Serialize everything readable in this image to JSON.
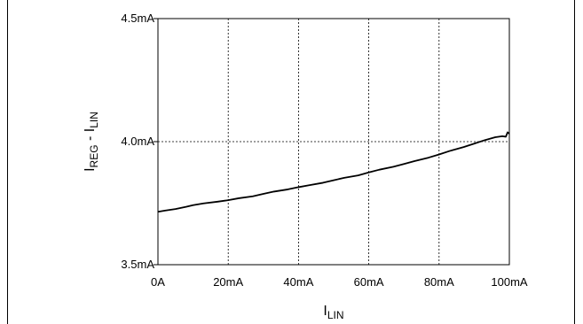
{
  "chart_data": {
    "type": "line",
    "xlabel": {
      "main": "I",
      "sub": "LIN"
    },
    "ylabel": {
      "part1_main": "I",
      "part1_sub": "REG",
      "sep": " - ",
      "part2_main": "I",
      "part2_sub": "LIN"
    },
    "xlim": [
      0,
      100
    ],
    "ylim": [
      3.5,
      4.5
    ],
    "x_ticks": [
      0,
      20,
      40,
      60,
      80,
      100
    ],
    "x_tick_labels": [
      "0A",
      "20mA",
      "40mA",
      "60mA",
      "80mA",
      "100mA"
    ],
    "y_ticks": [
      3.5,
      4.0,
      4.5
    ],
    "y_tick_labels": [
      "3.5mA",
      "4.0mA",
      "4.5mA"
    ],
    "grid": true,
    "series": [
      {
        "color": "#000000",
        "x": [
          0,
          2,
          5,
          8,
          10,
          13,
          17,
          20,
          23,
          27,
          30,
          33,
          37,
          40,
          43,
          47,
          50,
          53,
          57,
          60,
          63,
          67,
          70,
          73,
          77,
          80,
          83,
          87,
          90,
          93,
          96,
          98,
          99,
          99.5,
          100
        ],
        "y": [
          3.715,
          3.72,
          3.726,
          3.735,
          3.742,
          3.749,
          3.756,
          3.762,
          3.77,
          3.778,
          3.788,
          3.797,
          3.806,
          3.815,
          3.823,
          3.833,
          3.843,
          3.853,
          3.863,
          3.875,
          3.886,
          3.898,
          3.909,
          3.921,
          3.935,
          3.948,
          3.962,
          3.978,
          3.992,
          4.006,
          4.018,
          4.022,
          4.02,
          4.038,
          4.032
        ]
      }
    ]
  }
}
